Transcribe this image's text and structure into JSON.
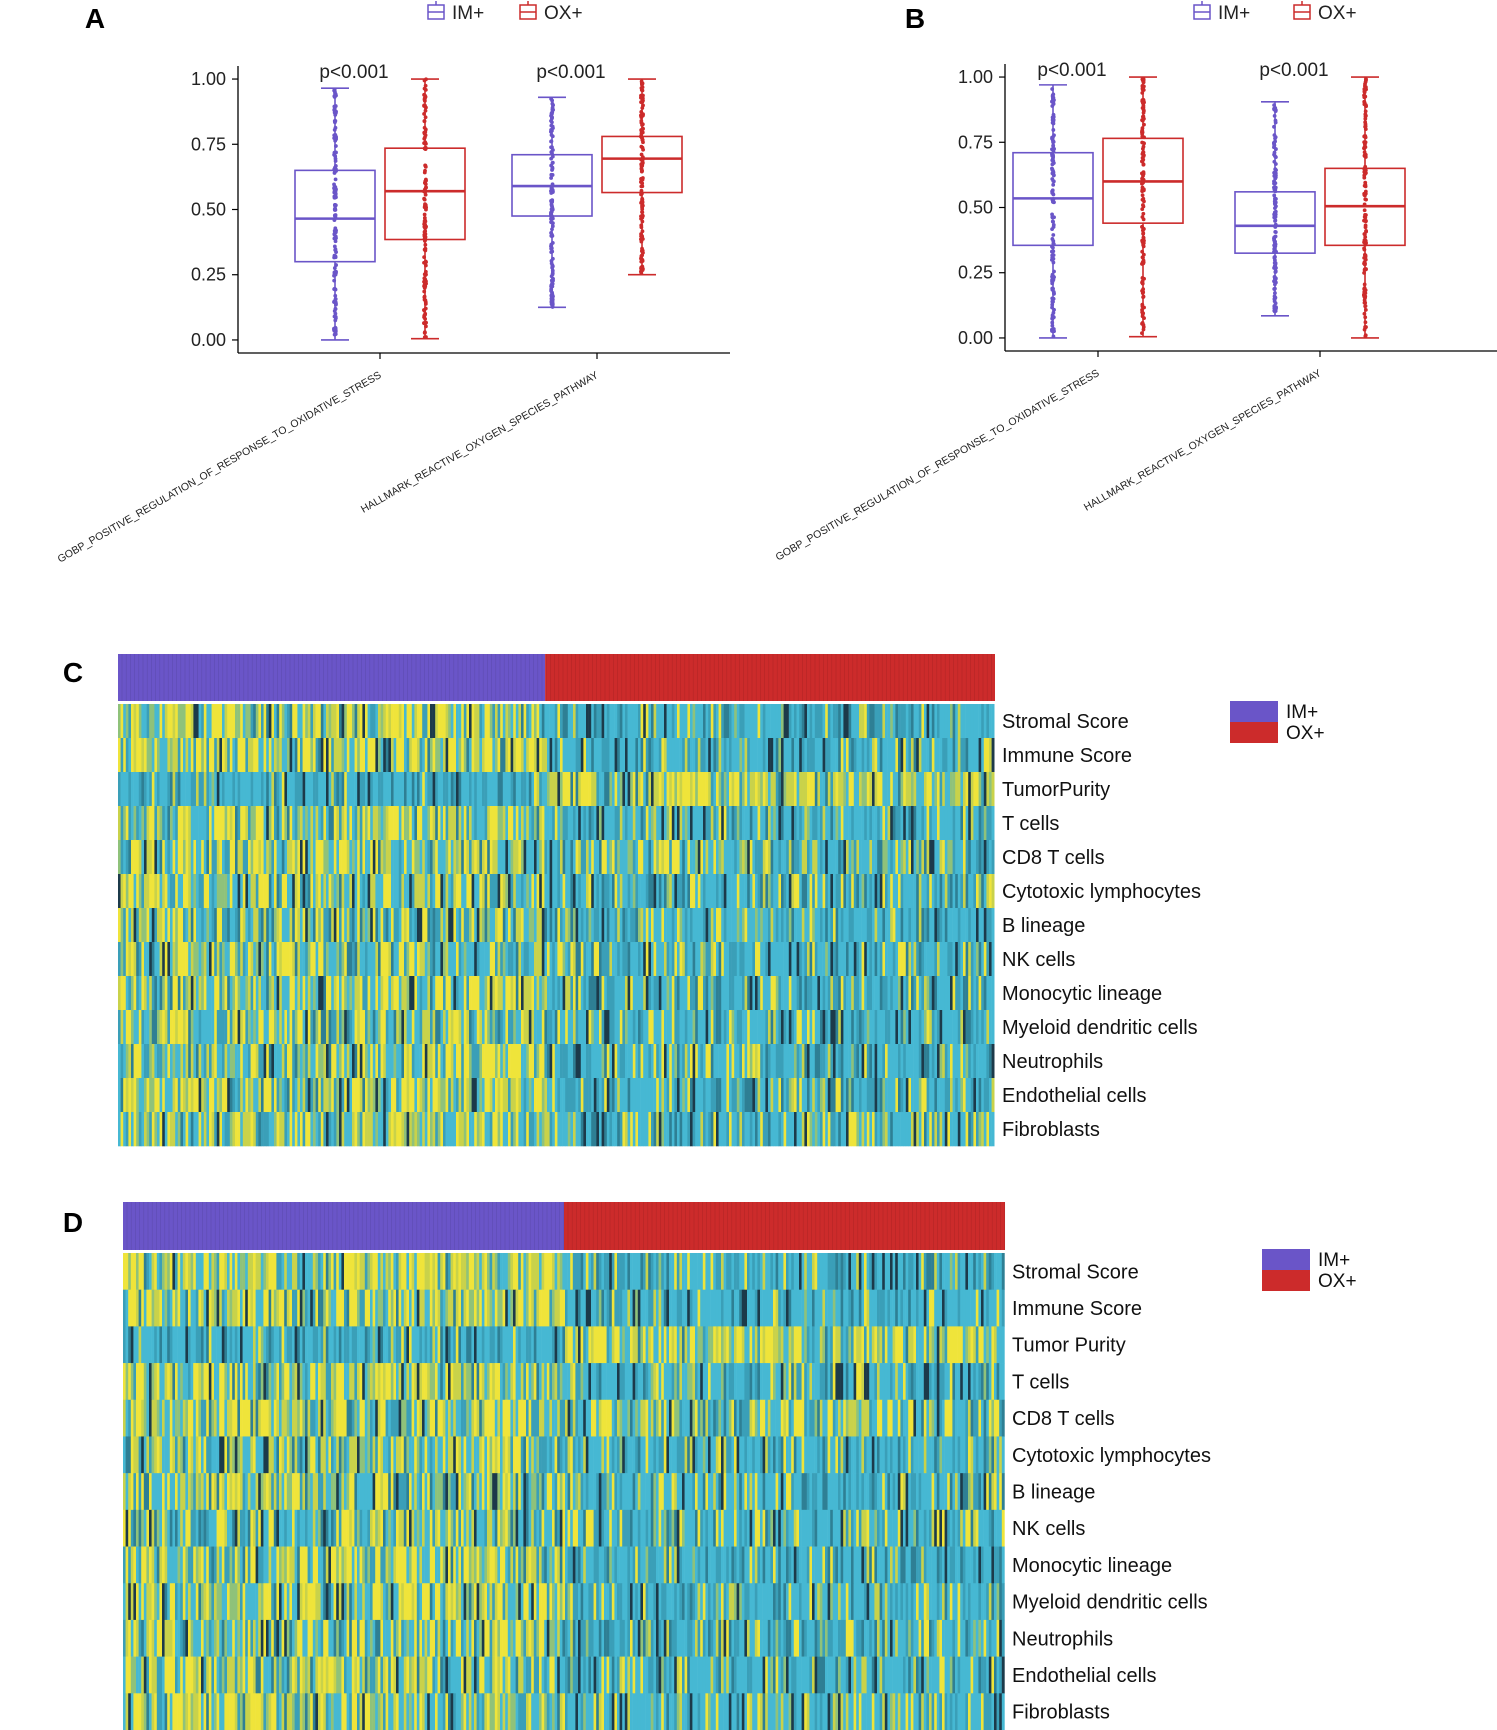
{
  "figure": {
    "bg_color": "#ffffff"
  },
  "colors": {
    "im": "#6A55C8",
    "ox": "#CC2B2B",
    "heat_blue": "#46B8D3",
    "heat_yellow": "#EFE43A",
    "heat_dark": "#1C3A4A"
  },
  "chart_data": [
    {
      "panel": "A",
      "type": "box",
      "legend": {
        "entries": [
          "IM+",
          "OX+"
        ],
        "placement": "top-center"
      },
      "categories": [
        "GOBP_POSITIVE_REGULATION_OF_RESPONSE_TO_OXIDATIVE_STRESS",
        "HALLMARK_REACTIVE_OXYGEN_SPECIES_PATHWAY"
      ],
      "yticks": [
        "0.00",
        "0.25",
        "0.50",
        "0.75",
        "1.00"
      ],
      "ylim": [
        -0.05,
        1.05
      ],
      "annotations": [
        "p<0.001",
        "p<0.001"
      ],
      "series": [
        {
          "name": "IM+",
          "boxes": [
            {
              "wlo": 0.0,
              "q1": 0.3,
              "med": 0.465,
              "q3": 0.65,
              "whi": 0.965
            },
            {
              "wlo": 0.125,
              "q1": 0.475,
              "med": 0.59,
              "q3": 0.71,
              "whi": 0.93
            }
          ]
        },
        {
          "name": "OX+",
          "boxes": [
            {
              "wlo": 0.005,
              "q1": 0.385,
              "med": 0.57,
              "q3": 0.735,
              "whi": 1.0
            },
            {
              "wlo": 0.25,
              "q1": 0.565,
              "med": 0.695,
              "q3": 0.78,
              "whi": 1.0
            }
          ]
        }
      ]
    },
    {
      "panel": "B",
      "type": "box",
      "legend": {
        "entries": [
          "IM+",
          "OX+"
        ],
        "placement": "top-center"
      },
      "categories": [
        "GOBP_POSITIVE_REGULATION_OF_RESPONSE_TO_OXIDATIVE_STRESS",
        "HALLMARK_REACTIVE_OXYGEN_SPECIES_PATHWAY"
      ],
      "yticks": [
        "0.00",
        "0.25",
        "0.50",
        "0.75",
        "1.00"
      ],
      "ylim": [
        -0.05,
        1.05
      ],
      "annotations": [
        "p<0.001",
        "p<0.001"
      ],
      "series": [
        {
          "name": "IM+",
          "boxes": [
            {
              "wlo": 0.0,
              "q1": 0.355,
              "med": 0.535,
              "q3": 0.71,
              "whi": 0.97
            },
            {
              "wlo": 0.085,
              "q1": 0.325,
              "med": 0.43,
              "q3": 0.56,
              "whi": 0.905
            }
          ]
        },
        {
          "name": "OX+",
          "boxes": [
            {
              "wlo": 0.005,
              "q1": 0.44,
              "med": 0.6,
              "q3": 0.765,
              "whi": 1.0
            },
            {
              "wlo": 0.0,
              "q1": 0.355,
              "med": 0.505,
              "q3": 0.65,
              "whi": 1.0
            }
          ]
        }
      ]
    },
    {
      "panel": "C",
      "type": "heatmap",
      "groups": [
        {
          "name": "IM+",
          "fraction": 0.487
        },
        {
          "name": "OX+",
          "fraction": 0.513
        }
      ],
      "rows": [
        "Stromal Score",
        "Immune Score",
        "TumorPurity",
        "T cells",
        "CD8 T cells",
        "Cytotoxic lymphocytes",
        "B lineage",
        "NK cells",
        "Monocytic lineage",
        "Myeloid dendritic cells",
        "Neutrophils",
        "Endothelial cells",
        "Fibroblasts"
      ],
      "legend": [
        "IM+",
        "OX+"
      ],
      "yellow_prob_im": [
        0.65,
        0.62,
        0.08,
        0.55,
        0.58,
        0.52,
        0.48,
        0.45,
        0.55,
        0.55,
        0.45,
        0.55,
        0.5
      ],
      "yellow_prob_ox": [
        0.12,
        0.12,
        0.62,
        0.18,
        0.38,
        0.18,
        0.18,
        0.2,
        0.2,
        0.18,
        0.22,
        0.2,
        0.22
      ]
    },
    {
      "panel": "D",
      "type": "heatmap",
      "groups": [
        {
          "name": "IM+",
          "fraction": 0.5
        },
        {
          "name": "OX+",
          "fraction": 0.5
        }
      ],
      "rows": [
        "Stromal Score",
        "Immune Score",
        "Tumor Purity",
        "T cells",
        "CD8 T cells",
        "Cytotoxic lymphocytes",
        "B lineage",
        "NK cells",
        "Monocytic lineage",
        "Myeloid dendritic cells",
        "Neutrophils",
        "Endothelial cells",
        "Fibroblasts"
      ],
      "legend": [
        "IM+",
        "OX+"
      ],
      "yellow_prob_im": [
        0.65,
        0.62,
        0.08,
        0.55,
        0.6,
        0.52,
        0.48,
        0.45,
        0.55,
        0.55,
        0.45,
        0.55,
        0.5
      ],
      "yellow_prob_ox": [
        0.12,
        0.12,
        0.62,
        0.18,
        0.4,
        0.18,
        0.18,
        0.2,
        0.2,
        0.18,
        0.22,
        0.2,
        0.22
      ]
    }
  ]
}
